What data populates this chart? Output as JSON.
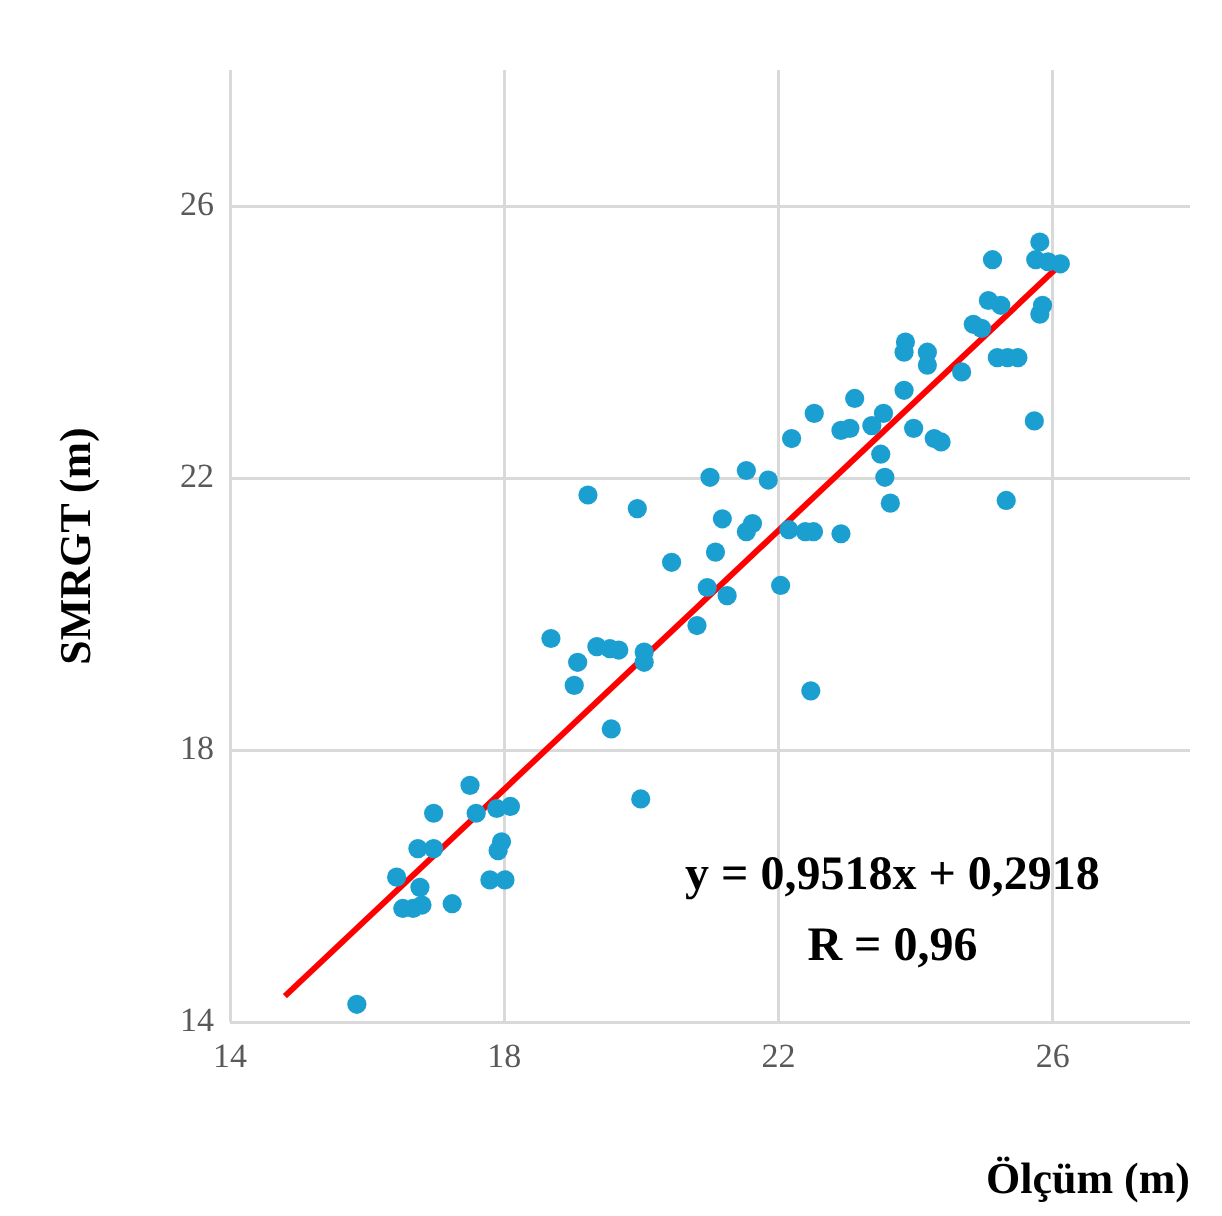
{
  "chart_data": {
    "type": "scatter",
    "xlabel": "Ölçüm (m)",
    "ylabel": "SMRGT (m)",
    "xlim": [
      14,
      28
    ],
    "ylim": [
      14,
      28
    ],
    "xticks": [
      14,
      18,
      22,
      26
    ],
    "yticks": [
      14,
      18,
      22,
      26
    ],
    "grid": true,
    "legend": false,
    "marker": "circle",
    "annotations": [
      "y = 0,9518x + 0,2918",
      "R = 0,96"
    ],
    "series": [
      {
        "color": "#1a9fd0",
        "x": [
          25.81,
          25.12,
          25.75,
          25.93,
          26.11,
          25.06,
          25.24,
          25.85,
          25.81,
          24.84,
          24.96,
          23.85,
          23.83,
          24.17,
          24.17,
          25.19,
          25.34,
          25.49,
          24.67,
          23.83,
          23.11,
          22.52,
          23.53,
          23.36,
          22.91,
          23.04,
          23.97,
          24.27,
          24.37,
          22.19,
          25.73,
          23.49,
          21.0,
          21.53,
          21.85,
          23.55,
          23.63,
          25.32,
          19.22,
          19.94,
          21.18,
          21.62,
          21.53,
          22.15,
          22.39,
          22.51,
          22.91,
          20.44,
          21.08,
          20.96,
          21.25,
          22.03,
          20.81,
          18.68,
          19.35,
          19.54,
          19.67,
          19.07,
          20.04,
          20.04,
          19.02,
          22.47,
          19.56,
          19.99,
          17.5,
          16.97,
          17.59,
          17.89,
          18.09,
          16.74,
          16.97,
          17.96,
          17.91,
          16.43,
          16.77,
          17.79,
          18.01,
          17.24,
          16.52,
          16.67,
          16.8,
          15.85
        ],
        "values": [
          25.47,
          25.21,
          25.21,
          25.18,
          25.15,
          24.61,
          24.54,
          24.54,
          24.41,
          24.26,
          24.2,
          24.0,
          23.85,
          23.85,
          23.66,
          23.77,
          23.77,
          23.77,
          23.56,
          23.29,
          23.17,
          22.95,
          22.95,
          22.77,
          22.7,
          22.73,
          22.73,
          22.58,
          22.53,
          22.58,
          22.84,
          22.35,
          22.01,
          22.11,
          21.97,
          22.01,
          21.63,
          21.67,
          21.75,
          21.55,
          21.4,
          21.33,
          21.21,
          21.24,
          21.21,
          21.21,
          21.18,
          20.76,
          20.91,
          20.39,
          20.27,
          20.42,
          19.83,
          19.64,
          19.52,
          19.49,
          19.47,
          19.29,
          19.44,
          19.29,
          18.95,
          18.87,
          18.31,
          17.28,
          17.48,
          17.07,
          17.07,
          17.14,
          17.17,
          16.55,
          16.55,
          16.65,
          16.52,
          16.13,
          15.98,
          16.09,
          16.09,
          15.74,
          15.67,
          15.67,
          15.72,
          14.26
        ]
      },
      {
        "type": "line",
        "color": "#ff0000",
        "marker": "none",
        "line_style": "solid",
        "x": [
          14.8,
          26.1
        ],
        "values": [
          14.38,
          25.13
        ]
      }
    ]
  }
}
